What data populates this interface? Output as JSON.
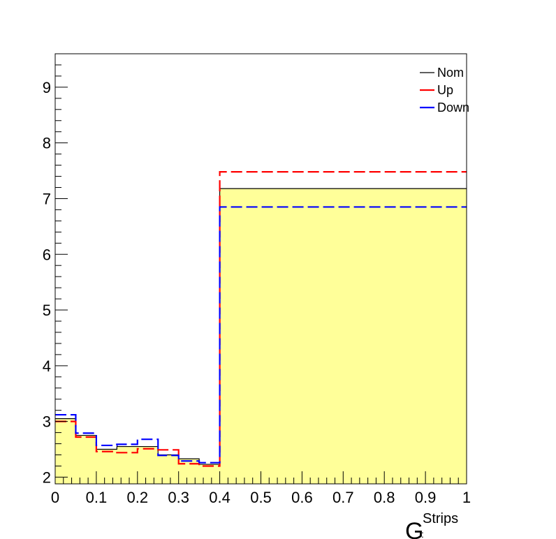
{
  "chart_data": {
    "type": "line",
    "title": "",
    "xlabel": {
      "main": "G",
      "superscript": "Strips",
      "subscript": ":"
    },
    "ylabel": "",
    "xlim": [
      0,
      1
    ],
    "ylim": [
      1.88,
      9.6
    ],
    "x_ticks": [
      0,
      0.1,
      0.2,
      0.3,
      0.4,
      0.5,
      0.6,
      0.7,
      0.8,
      0.9,
      1
    ],
    "x_tick_labels": [
      "0",
      "0.1",
      "0.2",
      "0.3",
      "0.4",
      "0.5",
      "0.6",
      "0.7",
      "0.8",
      "0.9",
      "1"
    ],
    "y_ticks": [
      2,
      3,
      4,
      5,
      6,
      7,
      8,
      9
    ],
    "y_tick_labels": [
      "2",
      "3",
      "4",
      "5",
      "6",
      "7",
      "8",
      "9"
    ],
    "bin_edges": [
      0,
      0.05,
      0.1,
      0.15,
      0.2,
      0.25,
      0.3,
      0.35,
      0.4,
      1.0
    ],
    "grid": false,
    "legend_position": "top-right",
    "series": [
      {
        "name": "Nom",
        "color": "#000000",
        "fill": "#ffff99",
        "style": "solid",
        "values": [
          3.05,
          2.75,
          2.5,
          2.55,
          2.55,
          2.4,
          2.33,
          2.23,
          7.18
        ]
      },
      {
        "name": "Up",
        "color": "#ff0000",
        "style": "dashed",
        "values": [
          3.0,
          2.72,
          2.46,
          2.44,
          2.51,
          2.49,
          2.24,
          2.2,
          7.48
        ]
      },
      {
        "name": "Down",
        "color": "#0000ff",
        "style": "dashed",
        "values": [
          3.12,
          2.79,
          2.57,
          2.59,
          2.68,
          2.39,
          2.29,
          2.26,
          6.85
        ]
      }
    ]
  }
}
